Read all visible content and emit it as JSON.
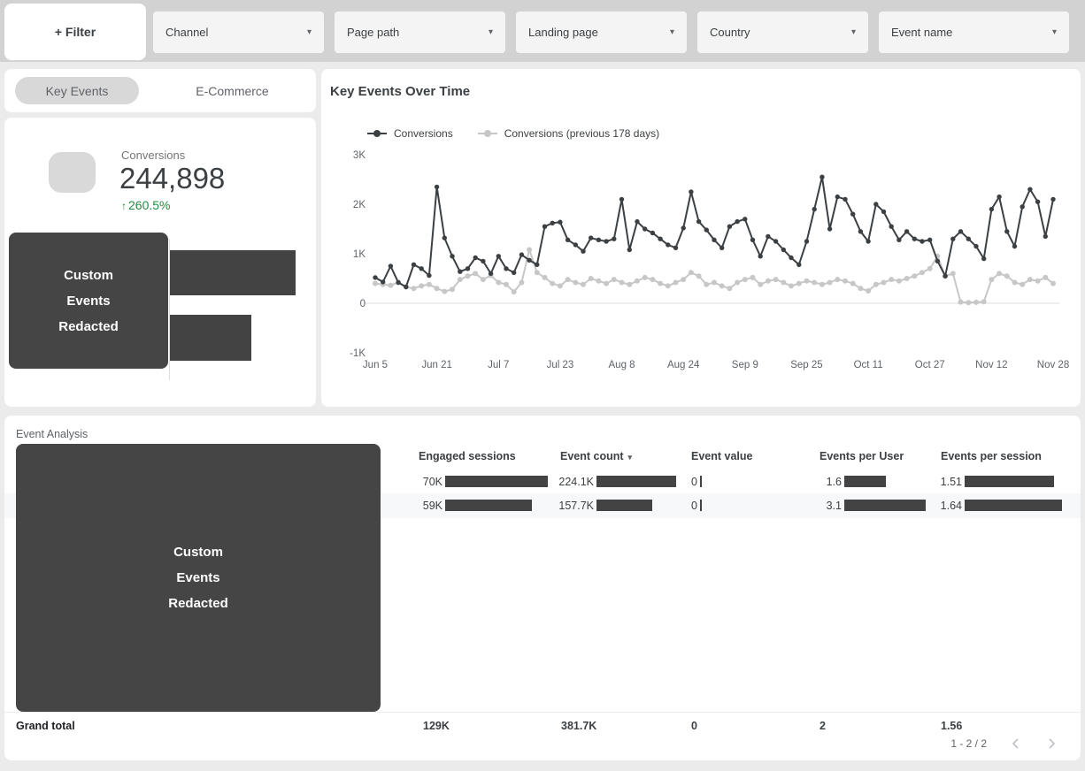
{
  "filter_bar": {
    "filter_button_label": "+ Filter",
    "dropdowns": [
      {
        "label": "Channel"
      },
      {
        "label": "Page path"
      },
      {
        "label": "Landing page"
      },
      {
        "label": "Country"
      },
      {
        "label": "Event name"
      }
    ],
    "caret_glyph": "▾"
  },
  "tabs": {
    "items": [
      {
        "label": "Key Events",
        "selected": true
      },
      {
        "label": "E-Commerce",
        "selected": false
      }
    ]
  },
  "scorecard": {
    "metric_label": "Conversions",
    "value": "244,898",
    "delta": "260.5%",
    "delta_direction": "up",
    "delta_arrow": "↑",
    "delta_color": "#1e8e3e"
  },
  "redaction_overlay": {
    "lines": [
      "Custom",
      "Events",
      "Redacted"
    ],
    "background": "#454545"
  },
  "timeseries": {
    "title": "Key Events Over Time",
    "legend": [
      {
        "label": "Conversions",
        "color": "#3c4043"
      },
      {
        "label": "Conversions (previous 178 days)",
        "color": "#c7c7c7"
      }
    ]
  },
  "chart_data": [
    {
      "type": "line",
      "title": "Key Events Over Time",
      "ylim": [
        -1000,
        3000
      ],
      "yticks": [
        {
          "label": "3K",
          "value": 3000
        },
        {
          "label": "2K",
          "value": 2000
        },
        {
          "label": "1K",
          "value": 1000
        },
        {
          "label": "0",
          "value": 0
        },
        {
          "label": "-1K",
          "value": -1000
        }
      ],
      "x_tick_labels": [
        "Jun 5",
        "Jun 21",
        "Jul 7",
        "Jul 23",
        "Aug 8",
        "Aug 24",
        "Sep 9",
        "Sep 25",
        "Oct 11",
        "Oct 27",
        "Nov 12",
        "Nov 28"
      ],
      "x_tick_indices": [
        0,
        8,
        16,
        24,
        32,
        40,
        48,
        56,
        64,
        72,
        80,
        88
      ],
      "points_step_days": 2,
      "grid": "baseline-only",
      "legend_position": "top",
      "series": [
        {
          "name": "Conversions",
          "color": "#3c4043",
          "values": [
            520,
            430,
            750,
            420,
            330,
            780,
            700,
            560,
            2350,
            1320,
            950,
            640,
            700,
            920,
            850,
            600,
            950,
            700,
            620,
            980,
            870,
            780,
            1550,
            1620,
            1640,
            1280,
            1180,
            1050,
            1320,
            1280,
            1250,
            1300,
            2100,
            1080,
            1650,
            1500,
            1420,
            1300,
            1180,
            1120,
            1520,
            2250,
            1650,
            1480,
            1280,
            1120,
            1550,
            1650,
            1700,
            1280,
            950,
            1350,
            1250,
            1080,
            920,
            780,
            1250,
            1900,
            2550,
            1500,
            2150,
            2100,
            1800,
            1450,
            1250,
            2000,
            1850,
            1550,
            1280,
            1450,
            1300,
            1250,
            1280,
            850,
            550,
            1300,
            1450,
            1300,
            1150,
            900,
            1900,
            2150,
            1450,
            1150,
            1950,
            2300,
            2050,
            1350,
            2100
          ]
        },
        {
          "name": "Conversions (previous 178 days)",
          "color": "#c7c7c7",
          "values": [
            400,
            380,
            360,
            420,
            330,
            300,
            350,
            380,
            300,
            240,
            280,
            480,
            550,
            600,
            480,
            560,
            420,
            380,
            230,
            420,
            1080,
            620,
            520,
            400,
            350,
            480,
            420,
            380,
            500,
            450,
            400,
            480,
            420,
            380,
            450,
            520,
            480,
            400,
            350,
            420,
            480,
            620,
            550,
            380,
            420,
            350,
            300,
            420,
            480,
            520,
            380,
            450,
            480,
            420,
            350,
            400,
            450,
            420,
            380,
            420,
            480,
            450,
            400,
            300,
            250,
            380,
            420,
            480,
            450,
            500,
            550,
            620,
            700,
            950,
            550,
            600,
            25,
            15,
            20,
            30,
            480,
            600,
            550,
            420,
            380,
            480,
            450,
            520,
            400
          ]
        }
      ]
    },
    {
      "type": "bar",
      "orientation": "horizontal",
      "categories": [
        "[redacted]",
        "[redacted]"
      ],
      "labels_redacted": true,
      "relative_lengths": [
        0.99,
        0.64
      ],
      "color": "#434343"
    }
  ],
  "event_analysis": {
    "title": "Event Analysis",
    "columns": [
      {
        "label": "Engaged sessions"
      },
      {
        "label": "Event count",
        "sort": "desc",
        "sort_glyph": "▾"
      },
      {
        "label": "Event value"
      },
      {
        "label": "Events per User"
      },
      {
        "label": "Events per session"
      }
    ],
    "rows": [
      {
        "cells": [
          {
            "text": "70K",
            "value": 70000
          },
          {
            "text": "224.1K",
            "value": 224100
          },
          {
            "text": "0",
            "value": 0
          },
          {
            "text": "1.6",
            "value": 1.6
          },
          {
            "text": "1.51",
            "value": 1.51
          }
        ]
      },
      {
        "cells": [
          {
            "text": "59K",
            "value": 59000
          },
          {
            "text": "157.7K",
            "value": 157700
          },
          {
            "text": "0",
            "value": 0
          },
          {
            "text": "3.1",
            "value": 3.1
          },
          {
            "text": "1.64",
            "value": 1.64
          }
        ]
      }
    ],
    "column_max": [
      70000,
      224100,
      0,
      3.1,
      1.64
    ],
    "grand_total": {
      "label": "Grand total",
      "values": [
        "129K",
        "381.7K",
        "0",
        "2",
        "1.56"
      ]
    },
    "pagination": {
      "range": "1 - 2 / 2"
    }
  },
  "colors": {
    "bar_fill": "#434343",
    "series_current": "#3c4043",
    "series_previous": "#c7c7c7",
    "delta_green": "#1e8e3e",
    "top_strip": "#d2d2d2",
    "page_background": "#ebebeb"
  }
}
